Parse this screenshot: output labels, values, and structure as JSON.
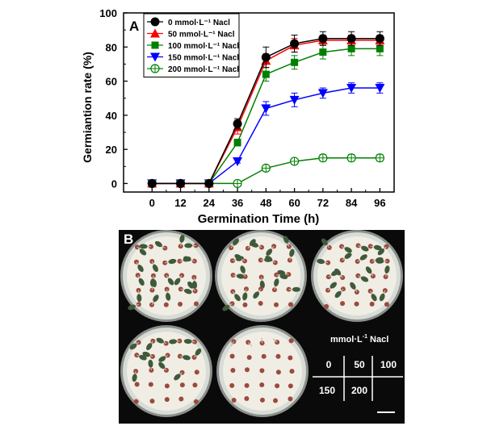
{
  "chart_data": {
    "type": "line",
    "panel_label": "A",
    "xlabel": "Germination Time (h)",
    "ylabel": "Germiantion rate (%)",
    "x": [
      0,
      12,
      24,
      36,
      48,
      60,
      72,
      84,
      96
    ],
    "xlim": [
      -12,
      102
    ],
    "ylim": [
      -5,
      100
    ],
    "yticks": [
      0,
      20,
      40,
      60,
      80,
      100
    ],
    "grid": false,
    "legend_position": "top-left",
    "series": [
      {
        "name": "0 mmol·L⁻¹ Nacl",
        "marker": "circle",
        "color": "#000000",
        "values": [
          0,
          0,
          0,
          35,
          74,
          82,
          85,
          85,
          85
        ],
        "errors": [
          0,
          0,
          0,
          3,
          6,
          5,
          4,
          4,
          4
        ]
      },
      {
        "name": "50 mmol·L⁻¹ Nacl",
        "marker": "triangle-up",
        "color": "#ff0000",
        "values": [
          0,
          0,
          0,
          33,
          72,
          81,
          84,
          84,
          84
        ],
        "errors": [
          0,
          0,
          0,
          4,
          4,
          4,
          3,
          3,
          3
        ]
      },
      {
        "name": "100 mmol·L⁻¹ Nacl",
        "marker": "square",
        "color": "#008000",
        "values": [
          0,
          0,
          0,
          24,
          64,
          71,
          77,
          79,
          79
        ],
        "errors": [
          0,
          0,
          0,
          2,
          4,
          4,
          4,
          4,
          4
        ]
      },
      {
        "name": "150 mmol·L⁻¹ Nacl",
        "marker": "triangle-down",
        "color": "#0000ff",
        "values": [
          0,
          0,
          0,
          13,
          44,
          49,
          53,
          56,
          56
        ],
        "errors": [
          0,
          0,
          0,
          1,
          4,
          4,
          3,
          3,
          3
        ]
      },
      {
        "name": "200 mmol·L⁻¹ Nacl",
        "marker": "circle-open-cross",
        "color": "#008000",
        "values": [
          0,
          0,
          0,
          0,
          9,
          13,
          15,
          15,
          15
        ],
        "errors": [
          0,
          0,
          0,
          0,
          1,
          1,
          2,
          2,
          2
        ]
      }
    ]
  },
  "photo_panel": {
    "label": "B",
    "key_title": "mmol·L",
    "key_title_sup": "-1",
    "key_title_suffix": " Nacl",
    "key_cells": [
      "0",
      "50",
      "100",
      "150",
      "200"
    ],
    "colors": {
      "background": "#0a0a0a",
      "dish": "#d8dcd6",
      "paper": "#f0ede4",
      "seed": "#9b4a3c",
      "sprout": "#3f5a3a"
    },
    "dishes": [
      {
        "concentration": "0",
        "sprouted_fraction": 0.85
      },
      {
        "concentration": "50",
        "sprouted_fraction": 0.84
      },
      {
        "concentration": "100",
        "sprouted_fraction": 0.79
      },
      {
        "concentration": "150",
        "sprouted_fraction": 0.56
      },
      {
        "concentration": "200",
        "sprouted_fraction": 0.15
      }
    ]
  }
}
